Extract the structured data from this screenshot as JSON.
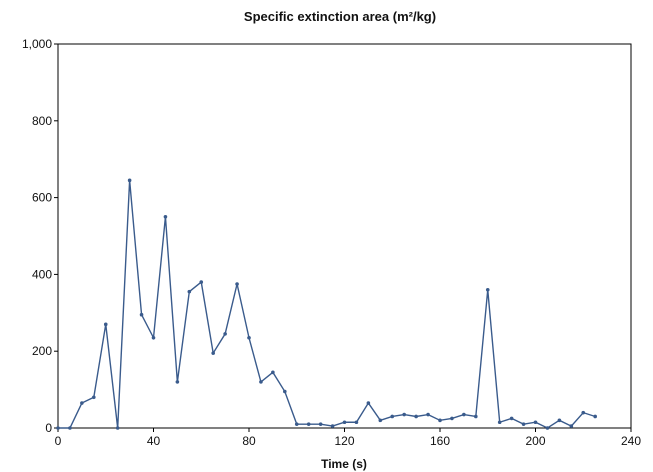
{
  "chart_data": {
    "type": "line",
    "title": "Specific extinction area (m²/kg)",
    "xlabel": "Time (s)",
    "ylabel": "",
    "xlim": [
      0,
      240
    ],
    "ylim": [
      0,
      1000
    ],
    "x_ticks": [
      0,
      40,
      80,
      120,
      160,
      200,
      240
    ],
    "y_ticks": [
      0,
      200,
      400,
      600,
      800,
      1000
    ],
    "x_tick_labels": [
      "0",
      "40",
      "80",
      "120",
      "160",
      "200",
      "240"
    ],
    "y_tick_labels": [
      "0",
      "200",
      "400",
      "600",
      "800",
      "1,000"
    ],
    "grid": false,
    "color": "#3a5b8c",
    "series": [
      {
        "x": [
          0,
          5,
          10,
          15,
          20,
          25,
          30,
          35,
          40,
          45,
          50,
          55,
          60,
          65,
          70,
          75,
          80,
          85,
          90,
          95,
          100,
          105,
          110,
          115,
          120,
          125,
          130,
          135,
          140,
          145,
          150,
          155,
          160,
          165,
          170,
          175,
          180,
          185,
          190,
          195,
          200,
          205,
          210,
          215,
          220,
          225
        ],
        "y": [
          0,
          0,
          65,
          80,
          270,
          0,
          645,
          295,
          235,
          550,
          120,
          355,
          380,
          195,
          245,
          375,
          235,
          120,
          145,
          95,
          10,
          10,
          10,
          5,
          15,
          15,
          65,
          20,
          30,
          35,
          30,
          35,
          20,
          25,
          35,
          30,
          360,
          15,
          25,
          10,
          15,
          0,
          20,
          5,
          40,
          30
        ]
      }
    ]
  }
}
